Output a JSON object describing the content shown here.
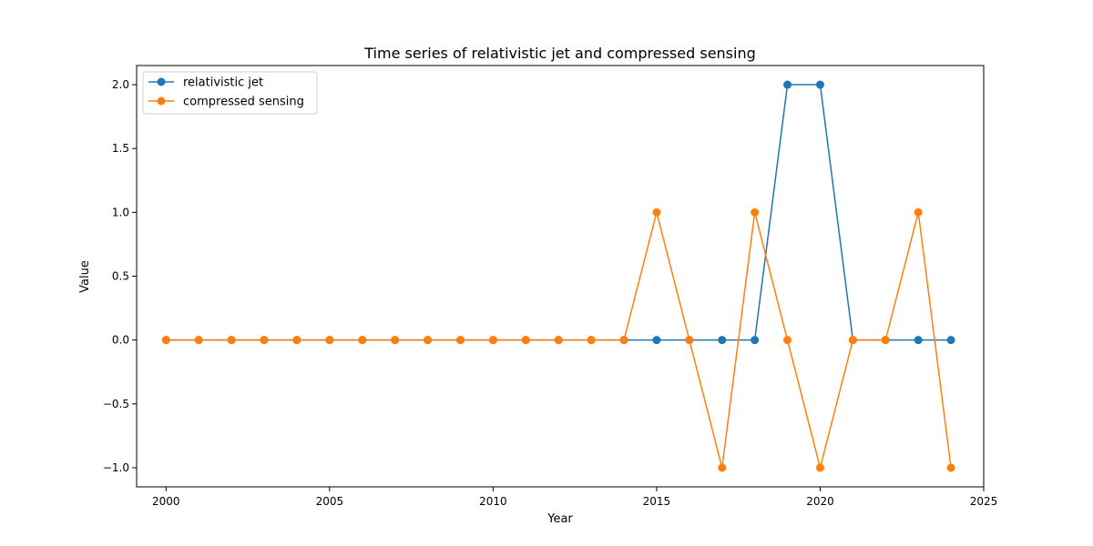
{
  "chart_data": {
    "type": "line",
    "title": "Time series of relativistic jet and compressed sensing",
    "xlabel": "Year",
    "ylabel": "Value",
    "xlim": [
      1999.1,
      2025.0
    ],
    "ylim": [
      -1.15,
      2.15
    ],
    "xticks": [
      2000,
      2005,
      2010,
      2015,
      2020,
      2025
    ],
    "yticks": [
      -1.0,
      -0.5,
      0.0,
      0.5,
      1.0,
      1.5,
      2.0
    ],
    "ytick_labels": [
      "−1.0",
      "−0.5",
      "0.0",
      "0.5",
      "1.0",
      "1.5",
      "2.0"
    ],
    "x": [
      2000,
      2001,
      2002,
      2003,
      2004,
      2005,
      2006,
      2007,
      2008,
      2009,
      2010,
      2011,
      2012,
      2013,
      2014,
      2015,
      2016,
      2017,
      2018,
      2019,
      2020,
      2021,
      2022,
      2023,
      2024
    ],
    "series": [
      {
        "name": "relativistic jet",
        "color": "#1f77b4",
        "values": [
          0,
          0,
          0,
          0,
          0,
          0,
          0,
          0,
          0,
          0,
          0,
          0,
          0,
          0,
          0,
          0,
          0,
          0,
          0,
          2,
          2,
          0,
          0,
          0,
          0
        ]
      },
      {
        "name": "compressed sensing",
        "color": "#ff7f0e",
        "values": [
          0,
          0,
          0,
          0,
          0,
          0,
          0,
          0,
          0,
          0,
          0,
          0,
          0,
          0,
          0,
          1,
          0,
          -1,
          1,
          0,
          -1,
          0,
          0,
          1,
          -1
        ]
      }
    ],
    "grid": false,
    "legend_position": "top-left"
  }
}
